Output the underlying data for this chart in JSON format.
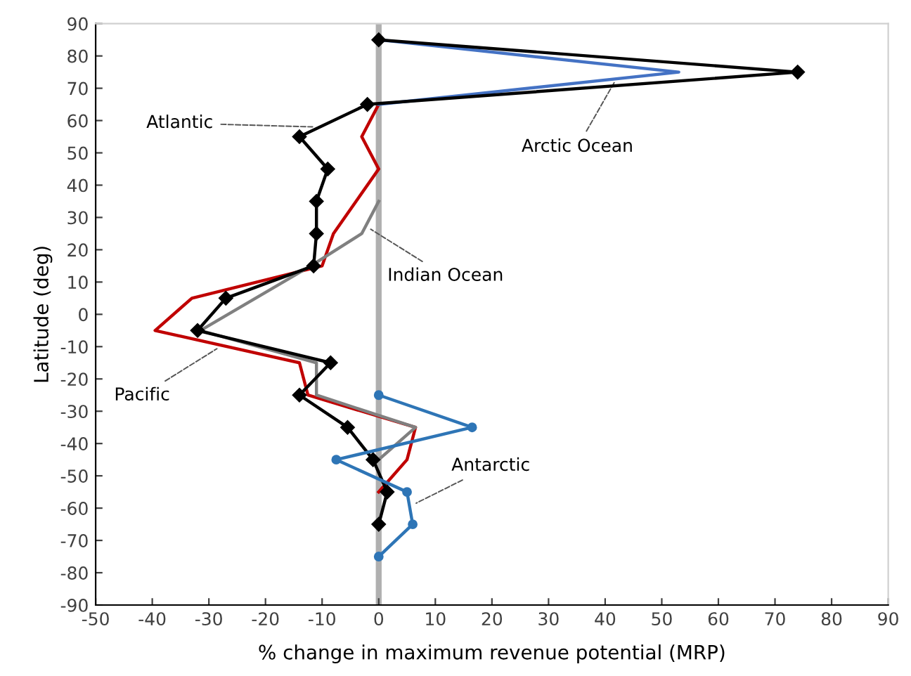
{
  "chart_data": {
    "type": "line",
    "xlabel": "% change in maximum revenue potential (MRP)",
    "ylabel": "Latitude (deg)",
    "xlim": [
      -50,
      90
    ],
    "xticks": [
      -50,
      -40,
      -30,
      -20,
      -10,
      0,
      10,
      20,
      30,
      40,
      50,
      60,
      70,
      80,
      90
    ],
    "ylim": [
      -90,
      90
    ],
    "yticks": [
      -90,
      -80,
      -70,
      -60,
      -50,
      -40,
      -30,
      -20,
      -10,
      0,
      10,
      20,
      30,
      40,
      50,
      60,
      70,
      80,
      90
    ],
    "grid": false,
    "legend": false,
    "ref_lines": [
      {
        "axis": "x",
        "value": 0,
        "label": null,
        "color": "#b0b0b0"
      }
    ],
    "series": [
      {
        "color": "#c00000",
        "marker": "none",
        "x": [
          0,
          -3,
          0,
          -4,
          -8,
          -10,
          -33,
          -39.5,
          -14,
          -12.5,
          6.5,
          5,
          0
        ],
        "values": [
          65,
          55,
          45,
          35,
          25,
          15,
          5,
          -5,
          -15,
          -25,
          -35,
          -45,
          -55
        ]
      },
      {
        "color": "#808080",
        "marker": "none",
        "x": [
          0,
          -3,
          -12,
          -31.5,
          -11,
          -11,
          6.5,
          0
        ],
        "values": [
          35,
          25,
          15,
          -5,
          -15,
          -25,
          -35,
          -45
        ]
      },
      {
        "color": "#4472c4",
        "marker": "none",
        "x": [
          0,
          53,
          0
        ],
        "values": [
          85,
          75,
          65
        ]
      },
      {
        "color": "#000000",
        "marker": "diamond",
        "x": [
          0,
          74,
          -2,
          -14,
          -9,
          -11,
          -11,
          -11.5,
          -27,
          -32,
          -8.5,
          -14,
          -5.5,
          -1,
          1.5,
          0
        ],
        "values": [
          85,
          75,
          65,
          55,
          45,
          35,
          25,
          15,
          5,
          -5,
          -15,
          -25,
          -35,
          -45,
          -55,
          -65
        ]
      },
      {
        "color": "#2e75b6",
        "marker": "circle",
        "x": [
          0,
          16.5,
          -7.5,
          5,
          6,
          0
        ],
        "values": [
          -25,
          -35,
          -45,
          -55,
          -65,
          -75
        ]
      }
    ],
    "annotations": [
      {
        "text": "Atlantic",
        "x": -11,
        "y": 58
      },
      {
        "text": "Arctic Ocean",
        "x": 42,
        "y": 73
      },
      {
        "text": "Indian Ocean",
        "x": -2,
        "y": 27
      },
      {
        "text": "Pacific",
        "x": -28,
        "y": -10
      },
      {
        "text": "Antarctic",
        "x": 6,
        "y": -59
      }
    ]
  }
}
